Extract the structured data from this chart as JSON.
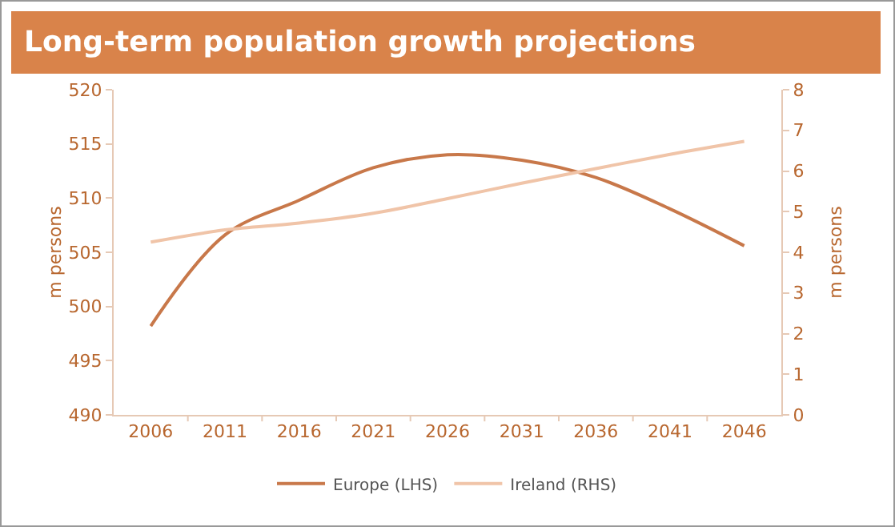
{
  "chart_data": {
    "type": "line",
    "title": "Long-term population growth projections",
    "ylabel": "m persons",
    "y2label": "m persons",
    "categories": [
      "2006",
      "2011",
      "2016",
      "2021",
      "2026",
      "2031",
      "2036",
      "2041",
      "2046"
    ],
    "series": [
      {
        "name": "Europe (LHS)",
        "color": "#c8784a",
        "values": [
          498.2,
          506.6,
          509.8,
          512.8,
          514.0,
          513.5,
          511.9,
          509.0,
          505.6
        ]
      },
      {
        "name": "Ireland (RHS)",
        "color": "#f0c4a8",
        "axis": "y2",
        "values": [
          4.25,
          4.55,
          4.72,
          4.96,
          5.32,
          5.7,
          6.06,
          6.41,
          6.73
        ]
      }
    ],
    "ylim": [
      490,
      520
    ],
    "yticks": [
      490,
      495,
      500,
      505,
      510,
      515,
      520
    ],
    "y2lim": [
      0,
      8
    ],
    "y2ticks": [
      0,
      1,
      2,
      3,
      4,
      5,
      6,
      7,
      8
    ],
    "grid": false,
    "legend": "bottom",
    "marker": "none",
    "line_style": "solid"
  }
}
